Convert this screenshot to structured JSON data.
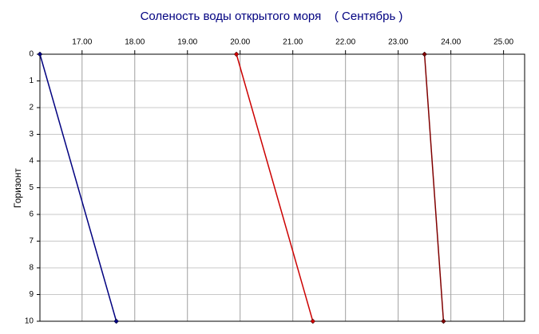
{
  "chart_data": {
    "type": "line",
    "title": "Соленость воды открытого моря    ( Сентябрь )",
    "y_label": "Горизонт",
    "series": [
      {
        "color": "#000080",
        "x": [
          16.2,
          17.65
        ],
        "values": [
          0,
          10
        ]
      },
      {
        "color": "#cc0000",
        "x": [
          19.93,
          21.38
        ],
        "values": [
          0,
          10
        ]
      },
      {
        "color": "#800000",
        "x": [
          23.5,
          23.86
        ],
        "values": [
          0,
          10
        ]
      }
    ],
    "xlim": [
      16.2,
      25.4
    ],
    "xticks": [
      {
        "value": 17,
        "label": "17.00"
      },
      {
        "value": 18,
        "label": "18.00"
      },
      {
        "value": 19,
        "label": "19.00"
      },
      {
        "value": 20,
        "label": "20.00"
      },
      {
        "value": 21,
        "label": "21.00"
      },
      {
        "value": 22,
        "label": "22.00"
      },
      {
        "value": 23,
        "label": "23.00"
      },
      {
        "value": 24,
        "label": "24.00"
      },
      {
        "value": 25,
        "label": "25.00"
      }
    ],
    "ylim": [
      0,
      10
    ],
    "yticks": [
      0,
      1,
      2,
      3,
      4,
      5,
      6,
      7,
      8,
      9,
      10
    ],
    "y_inverted": true,
    "grid": true
  }
}
